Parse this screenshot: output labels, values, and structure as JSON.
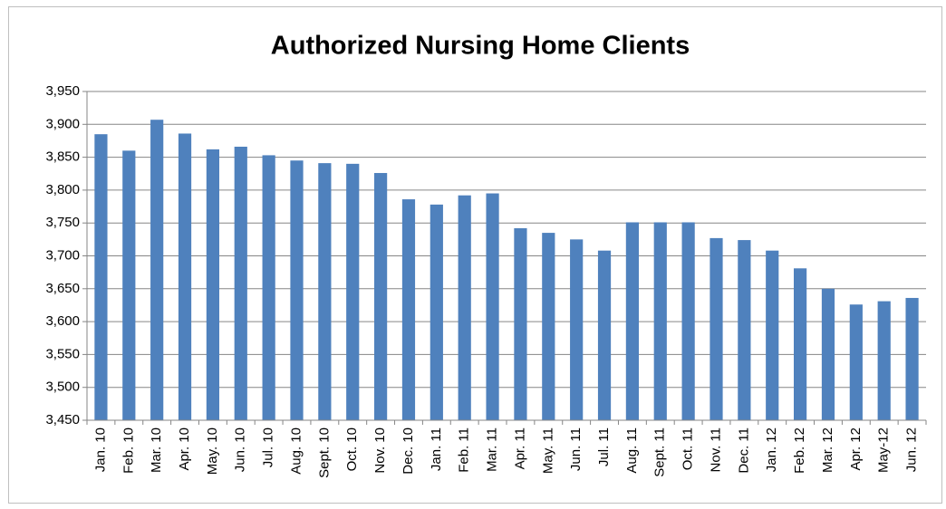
{
  "chart_data": {
    "type": "bar",
    "title": "Authorized Nursing Home Clients",
    "categories": [
      "Jan. 10",
      "Feb. 10",
      "Mar. 10",
      "Apr. 10",
      "May. 10",
      "Jun. 10",
      "Jul. 10",
      "Aug. 10",
      "Sept. 10",
      "Oct. 10",
      "Nov. 10",
      "Dec. 10",
      "Jan. 11",
      "Feb. 11",
      "Mar. 11",
      "Apr. 11",
      "May. 11",
      "Jun. 11",
      "Jul. 11",
      "Aug. 11",
      "Sept. 11",
      "Oct. 11",
      "Nov. 11",
      "Dec. 11",
      "Jan. 12",
      "Feb. 12",
      "Mar. 12",
      "Apr. 12",
      "May-12",
      "Jun. 12"
    ],
    "values": [
      3885,
      3860,
      3907,
      3886,
      3862,
      3866,
      3853,
      3845,
      3841,
      3840,
      3826,
      3786,
      3778,
      3792,
      3795,
      3742,
      3735,
      3725,
      3708,
      3751,
      3751,
      3751,
      3727,
      3724,
      3708,
      3681,
      3650,
      3626,
      3631,
      3636
    ],
    "color": "#4f81bd",
    "ylim": [
      3450,
      3950
    ],
    "yticks": [
      {
        "value": 3450,
        "label": "3,450"
      },
      {
        "value": 3500,
        "label": "3,500"
      },
      {
        "value": 3550,
        "label": "3,550"
      },
      {
        "value": 3600,
        "label": "3,600"
      },
      {
        "value": 3650,
        "label": "3,650"
      },
      {
        "value": 3700,
        "label": "3,700"
      },
      {
        "value": 3750,
        "label": "3,750"
      },
      {
        "value": 3800,
        "label": "3,800"
      },
      {
        "value": 3850,
        "label": "3,850"
      },
      {
        "value": 3900,
        "label": "3,900"
      },
      {
        "value": 3950,
        "label": "3,950"
      }
    ],
    "grid": true
  }
}
